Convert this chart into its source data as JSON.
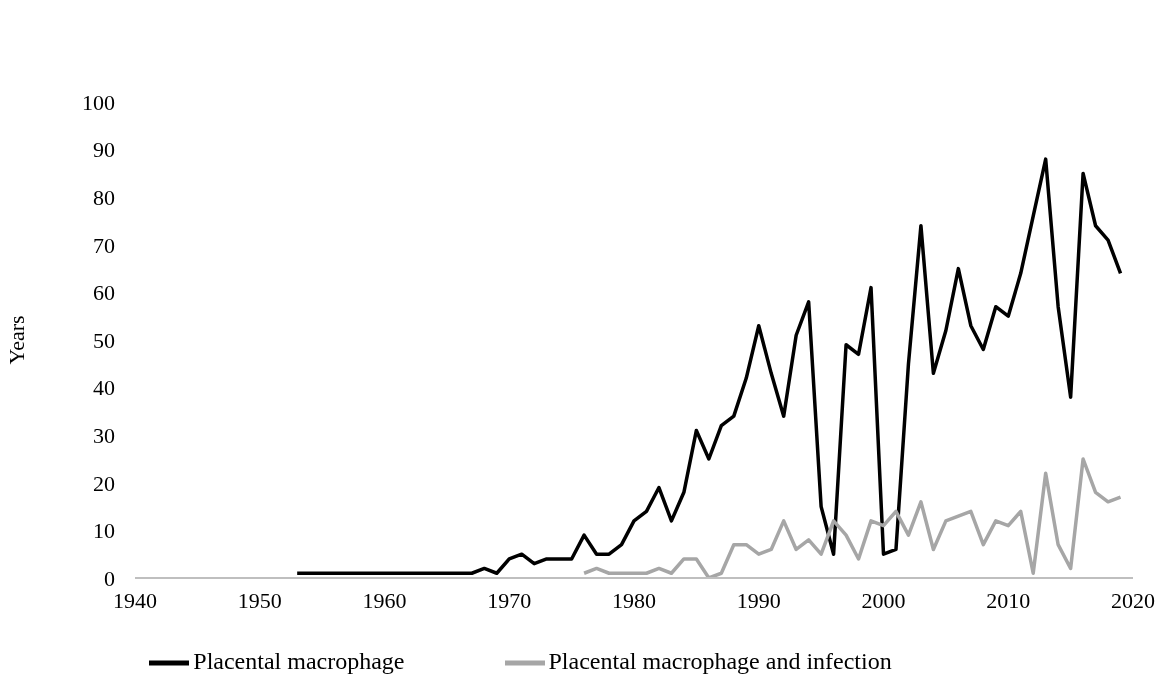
{
  "chart_data": {
    "type": "line",
    "ylabel": "Years",
    "xlim": [
      1940,
      2020
    ],
    "xticks": [
      1940,
      1950,
      1960,
      1970,
      1980,
      1990,
      2000,
      2010,
      2020
    ],
    "ylim": [
      0,
      100
    ],
    "yticks": [
      0,
      10,
      20,
      30,
      40,
      50,
      60,
      70,
      80,
      90,
      100
    ],
    "grid": false,
    "legend": "bottom",
    "marker": "none",
    "line_style": "solid",
    "series": [
      {
        "name": "Placental macrophage",
        "color": "#000000",
        "x": [
          1953,
          1954,
          1955,
          1956,
          1957,
          1958,
          1959,
          1960,
          1961,
          1962,
          1963,
          1964,
          1965,
          1966,
          1967,
          1968,
          1969,
          1970,
          1971,
          1972,
          1973,
          1974,
          1975,
          1976,
          1977,
          1978,
          1979,
          1980,
          1981,
          1982,
          1983,
          1984,
          1985,
          1986,
          1987,
          1988,
          1989,
          1990,
          1991,
          1992,
          1993,
          1994,
          1995,
          1996,
          1997,
          1998,
          1999,
          2000,
          2001,
          2002,
          2003,
          2004,
          2005,
          2006,
          2007,
          2008,
          2009,
          2010,
          2011,
          2012,
          2013,
          2014,
          2015,
          2016,
          2017,
          2018,
          2019
        ],
        "values": [
          1,
          1,
          1,
          1,
          1,
          1,
          1,
          1,
          1,
          1,
          1,
          1,
          1,
          1,
          1,
          2,
          1,
          4,
          5,
          3,
          4,
          4,
          4,
          9,
          5,
          5,
          7,
          12,
          14,
          19,
          12,
          18,
          31,
          25,
          32,
          34,
          42,
          53,
          43,
          34,
          51,
          58,
          15,
          5,
          49,
          47,
          61,
          5,
          6,
          45,
          74,
          43,
          52,
          65,
          53,
          48,
          57,
          55,
          64,
          76,
          88,
          57,
          38,
          85,
          74,
          71,
          64
        ]
      },
      {
        "name": "Placental macrophage and infection",
        "color": "#a6a6a6",
        "x": [
          1976,
          1977,
          1978,
          1979,
          1980,
          1981,
          1982,
          1983,
          1984,
          1985,
          1986,
          1987,
          1988,
          1989,
          1990,
          1991,
          1992,
          1993,
          1994,
          1995,
          1996,
          1997,
          1998,
          1999,
          2000,
          2001,
          2002,
          2003,
          2004,
          2005,
          2006,
          2007,
          2008,
          2009,
          2010,
          2011,
          2012,
          2013,
          2014,
          2015,
          2016,
          2017,
          2018,
          2019
        ],
        "values": [
          1,
          2,
          1,
          1,
          1,
          1,
          2,
          1,
          4,
          4,
          0,
          1,
          7,
          7,
          5,
          6,
          12,
          6,
          8,
          5,
          12,
          9,
          4,
          12,
          11,
          14,
          9,
          16,
          6,
          12,
          13,
          14,
          7,
          12,
          11,
          14,
          1,
          22,
          7,
          2,
          25,
          18,
          16,
          17
        ]
      }
    ]
  }
}
